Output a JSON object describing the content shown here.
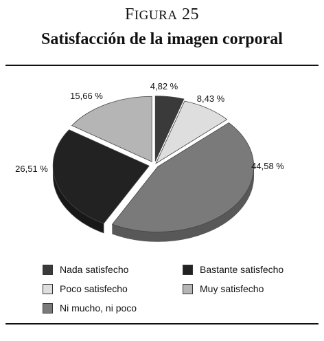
{
  "figure": {
    "label_first": "F",
    "label_rest": "IGURA",
    "number": "25"
  },
  "chart_data": {
    "type": "pie",
    "title": "Satisfacción de la imagen corporal",
    "slices": [
      {
        "name": "Nada satisfecho",
        "value": 4.82,
        "label": "4,82 %",
        "color": "#3a3a3a"
      },
      {
        "name": "Poco satisfecho",
        "value": 8.43,
        "label": "8,43 %",
        "color": "#dedede"
      },
      {
        "name": "Ni mucho, ni poco",
        "value": 44.58,
        "label": "44,58 %",
        "color": "#7a7a7a"
      },
      {
        "name": "Bastante satisfecho",
        "value": 26.51,
        "label": "26,51 %",
        "color": "#222222"
      },
      {
        "name": "Muy satisfecho",
        "value": 15.66,
        "label": "15,66 %",
        "color": "#b5b5b5"
      }
    ],
    "exploded": true,
    "three_d": true
  },
  "legend": [
    {
      "label": "Nada satisfecho",
      "color": "#3a3a3a"
    },
    {
      "label": "Bastante satisfecho",
      "color": "#222222"
    },
    {
      "label": "Poco satisfecho",
      "color": "#dedede"
    },
    {
      "label": "Muy satisfecho",
      "color": "#b5b5b5"
    },
    {
      "label": "Ni mucho, ni poco",
      "color": "#7a7a7a"
    }
  ]
}
